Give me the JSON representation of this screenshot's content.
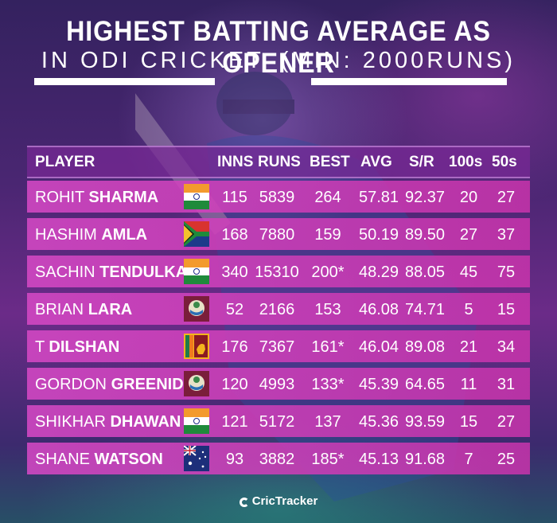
{
  "title": "HIGHEST BATTING AVERAGE AS OPENER",
  "subtitle": "IN ODI CRICKET: (MIN: 2000RUNS)",
  "columns": [
    "PLAYER",
    "INNS",
    "RUNS",
    "BEST",
    "AVG",
    "S/R",
    "100s",
    "50s"
  ],
  "rows": [
    {
      "first": "ROHIT",
      "last": "SHARMA",
      "flag": "india-flag-icon",
      "inns": "115",
      "runs": "5839",
      "best": "264",
      "avg": "57.81",
      "sr": "92.37",
      "hundreds": "20",
      "fifties": "27"
    },
    {
      "first": "HASHIM",
      "last": "AMLA",
      "flag": "south-africa-flag-icon",
      "inns": "168",
      "runs": "7880",
      "best": "159",
      "avg": "50.19",
      "sr": "89.50",
      "hundreds": "27",
      "fifties": "37"
    },
    {
      "first": "SACHIN",
      "last": "TENDULKAR",
      "flag": "india-flag-icon",
      "inns": "340",
      "runs": "15310",
      "best": "200*",
      "avg": "48.29",
      "sr": "88.05",
      "hundreds": "45",
      "fifties": "75"
    },
    {
      "first": "BRIAN",
      "last": "LARA",
      "flag": "west-indies-flag-icon",
      "inns": "52",
      "runs": "2166",
      "best": "153",
      "avg": "46.08",
      "sr": "74.71",
      "hundreds": "5",
      "fifties": "15"
    },
    {
      "first": "T",
      "last": "DILSHAN",
      "flag": "sri-lanka-flag-icon",
      "inns": "176",
      "runs": "7367",
      "best": "161*",
      "avg": "46.04",
      "sr": "89.08",
      "hundreds": "21",
      "fifties": "34"
    },
    {
      "first": "GORDON",
      "last": "GREENIDGE",
      "flag": "west-indies-flag-icon",
      "inns": "120",
      "runs": "4993",
      "best": "133*",
      "avg": "45.39",
      "sr": "64.65",
      "hundreds": "11",
      "fifties": "31"
    },
    {
      "first": "SHIKHAR",
      "last": "DHAWAN",
      "flag": "india-flag-icon",
      "inns": "121",
      "runs": "5172",
      "best": "137",
      "avg": "45.36",
      "sr": "93.59",
      "hundreds": "15",
      "fifties": "27"
    },
    {
      "first": "SHANE",
      "last": "WATSON",
      "flag": "australia-flag-icon",
      "inns": "93",
      "runs": "3882",
      "best": "185*",
      "avg": "45.13",
      "sr": "91.68",
      "hundreds": "7",
      "fifties": "25"
    }
  ],
  "brand": "CricTracker",
  "colors": {
    "row": "#cf45c0",
    "header": "#7a2896",
    "title": "#ffffff"
  }
}
